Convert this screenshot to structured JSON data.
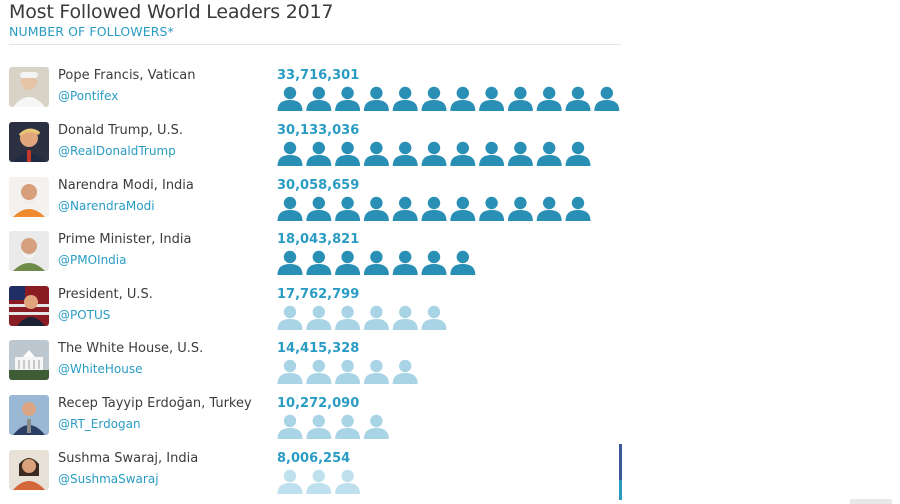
{
  "title": "Most Followed World Leaders 2017",
  "subtitle": "NUMBER OF FOLLOWERS*",
  "colors": {
    "accent": "#2a9cc4",
    "icon_dark": "#2a8fb5",
    "icon_light": "#a9d4e6"
  },
  "chart_data": {
    "type": "bar",
    "title": "Most Followed World Leaders 2017",
    "subtitle": "NUMBER OF FOLLOWERS*",
    "unit_per_icon": 2810000,
    "categories": [
      "Pope Francis, Vatican",
      "Donald Trump, U.S.",
      "Narendra Modi, India",
      "Prime Minister, India",
      "President, U.S.",
      "The White House, U.S.",
      "Recep Tayyip Erdoğan, Turkey",
      "Sushma Swaraj, India"
    ],
    "values": [
      33716301,
      30133036,
      30058659,
      18043821,
      17762799,
      14415328,
      10272090,
      8006254
    ],
    "rows": [
      {
        "name": "Pope Francis, Vatican",
        "handle": "@Pontifex",
        "count": "33,716,301",
        "value": 33716301,
        "icons": 12,
        "shade": "dark",
        "avatar": "pope-avatar"
      },
      {
        "name": "Donald Trump, U.S.",
        "handle": "@RealDonaldTrump",
        "count": "30,133,036",
        "value": 30133036,
        "icons": 11,
        "shade": "dark",
        "avatar": "trump-avatar"
      },
      {
        "name": "Narendra Modi, India",
        "handle": "@NarendraModi",
        "count": "30,058,659",
        "value": 30058659,
        "icons": 11,
        "shade": "dark",
        "avatar": "modi-avatar"
      },
      {
        "name": "Prime Minister, India",
        "handle": "@PMOIndia",
        "count": "18,043,821",
        "value": 18043821,
        "icons": 7,
        "shade": "dark",
        "avatar": "pmo-avatar"
      },
      {
        "name": "President, U.S.",
        "handle": "@POTUS",
        "count": "17,762,799",
        "value": 17762799,
        "icons": 6,
        "shade": "light",
        "avatar": "potus-avatar"
      },
      {
        "name": "The White House, U.S.",
        "handle": "@WhiteHouse",
        "count": "14,415,328",
        "value": 14415328,
        "icons": 5,
        "shade": "light",
        "avatar": "whitehouse-avatar"
      },
      {
        "name": "Recep Tayyip Erdoğan, Turkey",
        "handle": "@RT_Erdogan",
        "count": "10,272,090",
        "value": 10272090,
        "icons": 4,
        "shade": "light",
        "avatar": "erdogan-avatar"
      },
      {
        "name": "Sushma Swaraj, India",
        "handle": "@SushmaSwaraj",
        "count": "8,006,254",
        "value": 8006254,
        "icons": 3,
        "shade": "lighter",
        "avatar": "swaraj-avatar"
      }
    ]
  }
}
